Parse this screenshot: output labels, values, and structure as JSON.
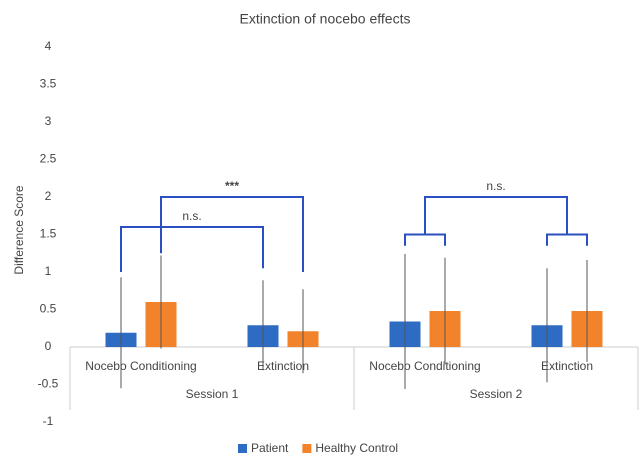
{
  "chart_data": {
    "type": "bar",
    "title": "Extinction of nocebo effects",
    "y_label": "Difference Score",
    "categories": [
      "Nocebo Conditioning",
      "Extinction",
      "Nocebo Conditioning",
      "Extinction"
    ],
    "groups": [
      "Session 1",
      "Session 2"
    ],
    "series": [
      {
        "name": "Patient",
        "color": "#2e6cc4",
        "values": [
          0.19,
          0.29,
          0.34,
          0.29
        ],
        "errors": [
          0.74,
          0.6,
          0.9,
          0.76
        ]
      },
      {
        "name": "Healthy Control",
        "color": "#f2832b",
        "values": [
          0.6,
          0.21,
          0.48,
          0.48
        ],
        "errors": [
          0.62,
          0.56,
          0.71,
          0.68
        ]
      }
    ],
    "annotations": [
      "n.s.",
      "***",
      "n.s."
    ],
    "ylim": [
      -1,
      4
    ],
    "yticks": [
      -1,
      -0.5,
      0,
      0.5,
      1,
      1.5,
      2,
      2.5,
      3,
      3.5,
      4
    ],
    "grid": false
  }
}
